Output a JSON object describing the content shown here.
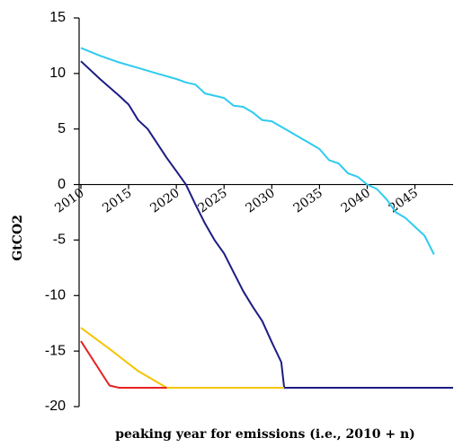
{
  "chart_data": {
    "type": "line",
    "y_label": "GtCO2",
    "x_label": "peaking year for emissions (i.e., 2010 + n)",
    "xlim": [
      2010,
      2049
    ],
    "xticks": [
      2010,
      2015,
      2020,
      2025,
      2030,
      2035,
      2040,
      2045
    ],
    "ylim": [
      -20,
      15
    ],
    "yticks": [
      -20,
      -15,
      -10,
      -5,
      0,
      5,
      10,
      15
    ],
    "grid": false,
    "series": [
      {
        "color": "#2ecbf0",
        "x": [
          2010,
          2012,
          2014,
          2016,
          2018,
          2020,
          2021,
          2022,
          2023,
          2024,
          2025,
          2026,
          2027,
          2028,
          2029,
          2030,
          2031,
          2032,
          2033,
          2034,
          2035,
          2036,
          2037,
          2038,
          2039,
          2040,
          2041,
          2042,
          2043,
          2044,
          2045,
          2046,
          2047
        ],
        "values": [
          12.3,
          11.6,
          11.0,
          10.5,
          10.0,
          9.5,
          9.2,
          9.0,
          8.2,
          8.0,
          7.8,
          7.1,
          7.0,
          6.5,
          5.8,
          5.7,
          5.2,
          4.7,
          4.2,
          3.7,
          3.2,
          2.2,
          1.9,
          1.0,
          0.7,
          0.0,
          -0.4,
          -1.3,
          -2.5,
          -3.0,
          -3.8,
          -4.6,
          -6.3
        ]
      },
      {
        "color": "#1c1c85",
        "x": [
          2010,
          2012,
          2014,
          2015,
          2016,
          2017,
          2018,
          2019,
          2020,
          2021,
          2022,
          2023,
          2024,
          2025,
          2026,
          2027,
          2028,
          2029,
          2030,
          2031,
          2031.3,
          2049
        ],
        "values": [
          11.1,
          9.5,
          8.0,
          7.2,
          5.8,
          5.0,
          3.7,
          2.4,
          1.2,
          0.0,
          -1.8,
          -3.5,
          -5.0,
          -6.2,
          -7.9,
          -9.6,
          -11.0,
          -12.3,
          -14.2,
          -16.0,
          -18.3,
          -18.3
        ]
      },
      {
        "color": "#f5c400",
        "x": [
          2010,
          2013,
          2016,
          2019,
          2031.3
        ],
        "values": [
          -12.9,
          -14.8,
          -16.8,
          -18.3,
          -18.3
        ]
      },
      {
        "color": "#e82020",
        "x": [
          2010,
          2013,
          2014,
          2019
        ],
        "values": [
          -14.1,
          -18.1,
          -18.3,
          -18.3
        ]
      }
    ]
  }
}
